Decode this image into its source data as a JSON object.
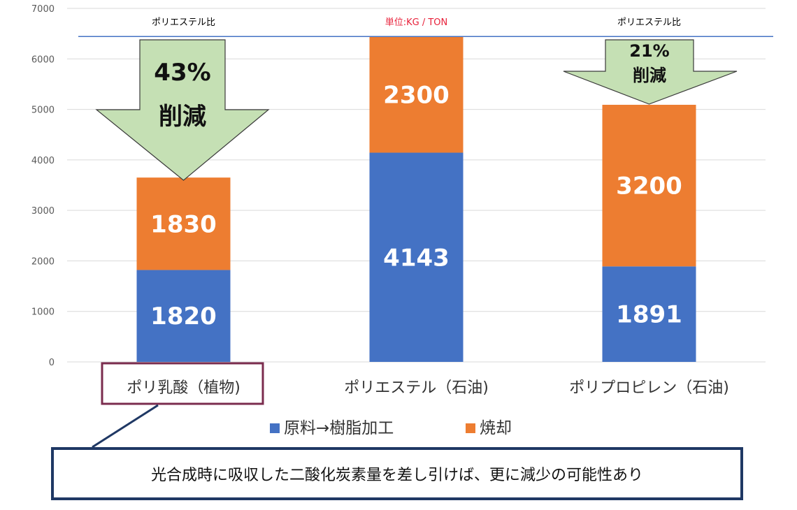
{
  "chart_data": {
    "type": "bar",
    "stacked": true,
    "categories": [
      "ポリ乳酸（植物)",
      "ポリエステル（石油)",
      "ポリプロピレン（石油)"
    ],
    "series": [
      {
        "name": "原料→樹脂加工",
        "values": [
          1820,
          4143,
          1891
        ],
        "color": "#4472c4"
      },
      {
        "name": "焼却",
        "values": [
          1830,
          2300,
          3200
        ],
        "color": "#ed7d31"
      }
    ],
    "ylim": [
      0,
      7000
    ],
    "yticks": [
      "0",
      "1000",
      "2000",
      "3000",
      "4000",
      "5000",
      "6000",
      "7000"
    ],
    "grid": true,
    "legend": "bottom",
    "reference_line": {
      "value": 6443,
      "color": "#4472c4"
    },
    "unit_note": "単位:KG / TON",
    "top_notes": [
      "ポリエステル比",
      "",
      "ポリエステル比"
    ],
    "annotations": [
      {
        "category_index": 0,
        "lines": [
          "43%",
          "削減"
        ]
      },
      {
        "category_index": 2,
        "lines": [
          "21%",
          "削減"
        ]
      }
    ],
    "highlight_category_index": 0,
    "callout": "光合成時に吸収した二酸化炭素量を差し引けば、更に減少の可能性あり"
  },
  "colors": {
    "arrow_fill": "#c5e0b4",
    "arrow_stroke": "#3a3a3a",
    "highlight_box": "#7b2c4e",
    "callout_border": "#1f3864",
    "grid": "#d9d9d9"
  }
}
